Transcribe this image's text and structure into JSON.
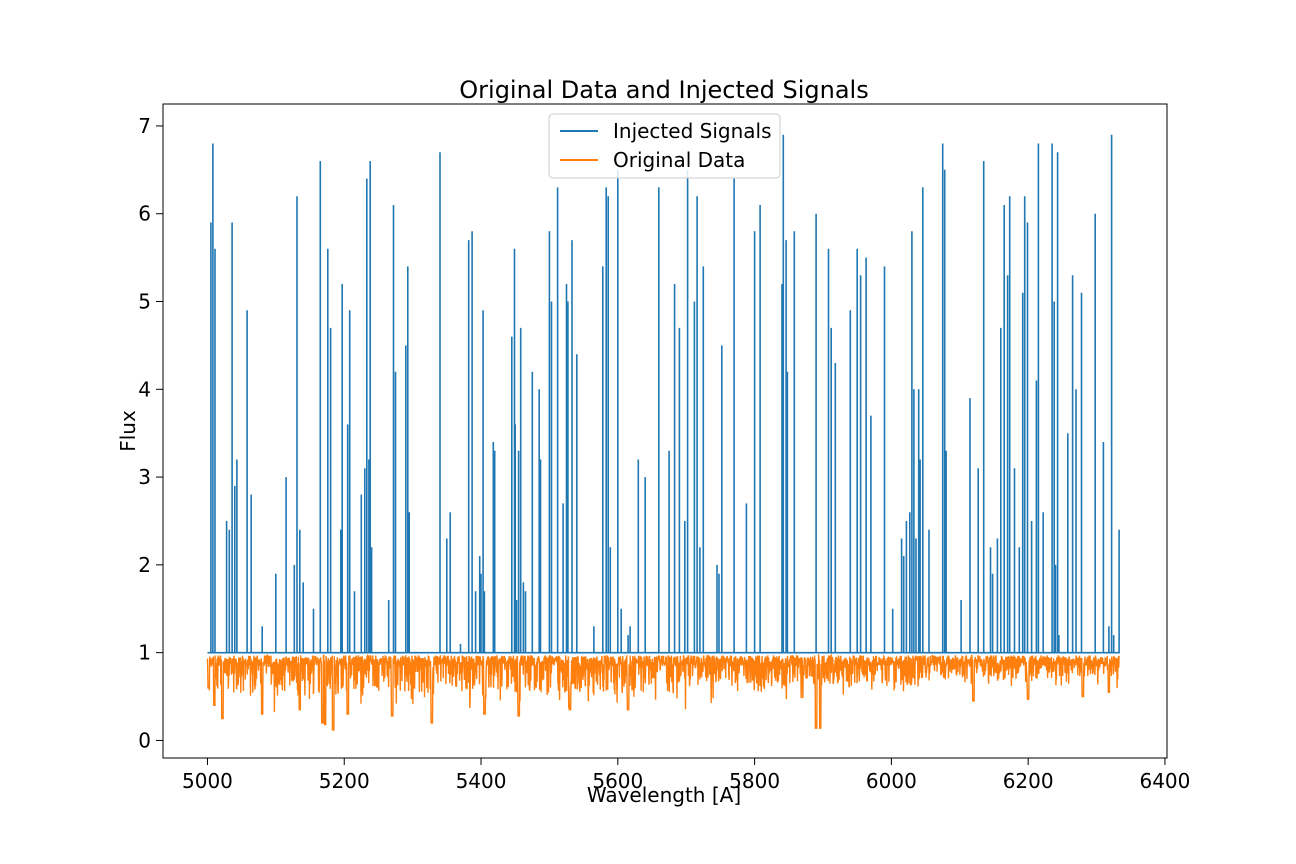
{
  "chart_data": {
    "type": "line",
    "title": "Original Data and Injected Signals",
    "xlabel": "Wavelength [A]",
    "ylabel": "Flux",
    "xlim": [
      4935,
      6403
    ],
    "ylim": [
      -0.2,
      7.25
    ],
    "xticks": [
      5000,
      5200,
      5400,
      5600,
      5800,
      6000,
      6200,
      6400
    ],
    "yticks": [
      0,
      1,
      2,
      3,
      4,
      5,
      6,
      7
    ],
    "grid": false,
    "legend": "upper center",
    "series": [
      {
        "name": "Injected Signals",
        "color": "#1f77b4",
        "baseline": 1.0,
        "x_range": [
          5000,
          6333
        ],
        "peaks": [
          [
            5005,
            5.9
          ],
          [
            5008,
            6.8
          ],
          [
            5011,
            5.6
          ],
          [
            5018,
            1.0
          ],
          [
            5028,
            2.5
          ],
          [
            5032,
            2.4
          ],
          [
            5036,
            5.9
          ],
          [
            5040,
            2.9
          ],
          [
            5043,
            3.2
          ],
          [
            5058,
            4.9
          ],
          [
            5064,
            2.8
          ],
          [
            5080,
            1.3
          ],
          [
            5100,
            1.9
          ],
          [
            5115,
            3.0
          ],
          [
            5127,
            2.0
          ],
          [
            5131,
            6.2
          ],
          [
            5135,
            2.4
          ],
          [
            5140,
            1.8
          ],
          [
            5155,
            1.5
          ],
          [
            5165,
            6.6
          ],
          [
            5176,
            5.6
          ],
          [
            5180,
            4.7
          ],
          [
            5195,
            2.4
          ],
          [
            5197,
            5.2
          ],
          [
            5205,
            3.6
          ],
          [
            5208,
            4.9
          ],
          [
            5215,
            1.7
          ],
          [
            5225,
            2.8
          ],
          [
            5230,
            3.1
          ],
          [
            5233,
            6.4
          ],
          [
            5236,
            3.2
          ],
          [
            5238,
            6.6
          ],
          [
            5240,
            2.2
          ],
          [
            5265,
            1.6
          ],
          [
            5272,
            6.1
          ],
          [
            5275,
            4.2
          ],
          [
            5290,
            4.5
          ],
          [
            5293,
            5.4
          ],
          [
            5295,
            2.6
          ],
          [
            5340,
            6.7
          ],
          [
            5350,
            2.3
          ],
          [
            5355,
            2.6
          ],
          [
            5370,
            1.1
          ],
          [
            5382,
            5.7
          ],
          [
            5387,
            5.8
          ],
          [
            5392,
            1.7
          ],
          [
            5398,
            2.1
          ],
          [
            5400,
            1.9
          ],
          [
            5403,
            4.9
          ],
          [
            5405,
            1.7
          ],
          [
            5418,
            3.4
          ],
          [
            5420,
            3.3
          ],
          [
            5445,
            4.6
          ],
          [
            5449,
            5.6
          ],
          [
            5450,
            3.6
          ],
          [
            5452,
            1.6
          ],
          [
            5455,
            3.3
          ],
          [
            5458,
            4.7
          ],
          [
            5462,
            1.8
          ],
          [
            5465,
            1.7
          ],
          [
            5475,
            4.2
          ],
          [
            5485,
            4.0
          ],
          [
            5487,
            3.2
          ],
          [
            5500,
            5.8
          ],
          [
            5503,
            5.0
          ],
          [
            5512,
            6.3
          ],
          [
            5520,
            2.7
          ],
          [
            5525,
            5.2
          ],
          [
            5527,
            5.0
          ],
          [
            5533,
            5.7
          ],
          [
            5540,
            4.4
          ],
          [
            5565,
            1.3
          ],
          [
            5578,
            5.4
          ],
          [
            5583,
            6.3
          ],
          [
            5586,
            6.2
          ],
          [
            5589,
            2.2
          ],
          [
            5600,
            6.5
          ],
          [
            5605,
            1.5
          ],
          [
            5615,
            1.2
          ],
          [
            5618,
            1.3
          ],
          [
            5630,
            3.2
          ],
          [
            5640,
            3.0
          ],
          [
            5660,
            6.3
          ],
          [
            5675,
            3.3
          ],
          [
            5683,
            5.2
          ],
          [
            5690,
            4.7
          ],
          [
            5698,
            2.5
          ],
          [
            5702,
            6.5
          ],
          [
            5712,
            5.0
          ],
          [
            5716,
            6.2
          ],
          [
            5720,
            2.2
          ],
          [
            5725,
            5.4
          ],
          [
            5745,
            2.0
          ],
          [
            5748,
            1.9
          ],
          [
            5752,
            4.5
          ],
          [
            5770,
            6.4
          ],
          [
            5788,
            2.7
          ],
          [
            5800,
            5.8
          ],
          [
            5808,
            6.1
          ],
          [
            5840,
            5.2
          ],
          [
            5842,
            6.9
          ],
          [
            5846,
            5.7
          ],
          [
            5848,
            4.2
          ],
          [
            5858,
            5.8
          ],
          [
            5890,
            6.0
          ],
          [
            5908,
            5.6
          ],
          [
            5912,
            4.7
          ],
          [
            5918,
            4.3
          ],
          [
            5940,
            4.9
          ],
          [
            5950,
            5.6
          ],
          [
            5955,
            5.3
          ],
          [
            5963,
            5.5
          ],
          [
            5970,
            3.7
          ],
          [
            5990,
            5.4
          ],
          [
            6002,
            1.5
          ],
          [
            6015,
            2.3
          ],
          [
            6018,
            2.1
          ],
          [
            6022,
            2.5
          ],
          [
            6027,
            2.6
          ],
          [
            6030,
            5.8
          ],
          [
            6033,
            4.0
          ],
          [
            6036,
            2.3
          ],
          [
            6040,
            4.0
          ],
          [
            6042,
            3.2
          ],
          [
            6046,
            6.3
          ],
          [
            6055,
            2.4
          ],
          [
            6075,
            6.8
          ],
          [
            6078,
            6.5
          ],
          [
            6080,
            3.3
          ],
          [
            6102,
            1.6
          ],
          [
            6115,
            3.9
          ],
          [
            6127,
            3.1
          ],
          [
            6135,
            6.6
          ],
          [
            6145,
            2.2
          ],
          [
            6148,
            1.9
          ],
          [
            6155,
            2.3
          ],
          [
            6160,
            4.7
          ],
          [
            6165,
            6.1
          ],
          [
            6170,
            5.3
          ],
          [
            6173,
            6.2
          ],
          [
            6180,
            3.1
          ],
          [
            6187,
            2.2
          ],
          [
            6192,
            5.1
          ],
          [
            6195,
            6.2
          ],
          [
            6199,
            5.9
          ],
          [
            6205,
            2.5
          ],
          [
            6212,
            4.1
          ],
          [
            6215,
            6.8
          ],
          [
            6222,
            2.6
          ],
          [
            6235,
            6.8
          ],
          [
            6238,
            5.0
          ],
          [
            6240,
            2.0
          ],
          [
            6243,
            6.7
          ],
          [
            6245,
            1.2
          ],
          [
            6258,
            3.5
          ],
          [
            6265,
            5.3
          ],
          [
            6270,
            4.0
          ],
          [
            6278,
            5.1
          ],
          [
            6298,
            6.0
          ],
          [
            6310,
            3.4
          ],
          [
            6318,
            1.3
          ],
          [
            6322,
            6.9
          ],
          [
            6325,
            1.2
          ],
          [
            6333,
            2.4
          ]
        ]
      },
      {
        "name": "Original Data",
        "color": "#ff7f0e",
        "x_range": [
          5000,
          6333
        ],
        "continuum": 0.97,
        "deep_lines": [
          [
            5002,
            0.6
          ],
          [
            5010,
            0.4
          ],
          [
            5022,
            0.25
          ],
          [
            5080,
            0.3
          ],
          [
            5135,
            0.35
          ],
          [
            5168,
            0.2
          ],
          [
            5172,
            0.18
          ],
          [
            5184,
            0.12
          ],
          [
            5205,
            0.3
          ],
          [
            5270,
            0.28
          ],
          [
            5328,
            0.2
          ],
          [
            5405,
            0.3
          ],
          [
            5455,
            0.28
          ],
          [
            5530,
            0.35
          ],
          [
            5615,
            0.35
          ],
          [
            5890,
            0.14
          ],
          [
            5896,
            0.14
          ],
          [
            6120,
            0.45
          ],
          [
            6200,
            0.47
          ],
          [
            6280,
            0.5
          ],
          [
            6318,
            0.55
          ]
        ]
      }
    ]
  }
}
